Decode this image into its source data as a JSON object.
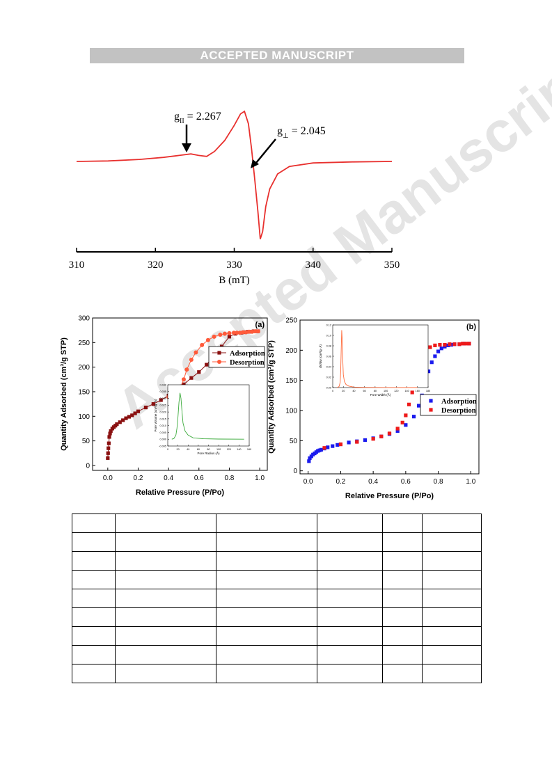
{
  "header": {
    "banner": "ACCEPTED MANUSCRIPT"
  },
  "watermark": "Accepted Manuscript",
  "chart_data": [
    {
      "type": "line",
      "xlabel": "B (mT)",
      "ylabel": "",
      "xlim": [
        310,
        350
      ],
      "x_ticks": [
        "310",
        "320",
        "330",
        "340",
        "350"
      ],
      "color": "#e8302e",
      "annotations": [
        {
          "main": "g",
          "sub": "II",
          "rest": " = 2.267",
          "x": 324.5
        },
        {
          "main": "g",
          "sub": "⊥",
          "rest": " = 2.045",
          "x": 332.3
        }
      ],
      "series": [
        {
          "x": [
            310,
            314,
            318,
            321,
            323,
            324.5,
            325.5,
            326.5,
            327.5,
            328.8,
            330,
            330.8,
            331.3,
            331.8,
            332.2,
            332.6,
            333,
            333.3,
            333.6,
            334,
            334.5,
            335.5,
            337,
            340,
            345,
            350
          ],
          "y": [
            0.0,
            0.01,
            0.04,
            0.08,
            0.12,
            0.15,
            0.12,
            0.1,
            0.2,
            0.42,
            0.72,
            0.95,
            1.0,
            0.75,
            0.25,
            -0.35,
            -1.0,
            -1.55,
            -1.4,
            -0.9,
            -0.55,
            -0.25,
            -0.1,
            -0.03,
            -0.01,
            0.0
          ]
        }
      ]
    },
    {
      "type": "line",
      "panel_label": "(a)",
      "xlabel": "Relative Pressure (P/Po)",
      "ylabel": "Quantity Adsorbed (cm³/g STP)",
      "xlim": [
        -0.1,
        1.05
      ],
      "ylim": [
        -10,
        300
      ],
      "x_ticks": [
        "0.0",
        "0.2",
        "0.4",
        "0.6",
        "0.8",
        "1.0"
      ],
      "y_ticks": [
        "0",
        "50",
        "100",
        "150",
        "200",
        "250",
        "300"
      ],
      "legend_position": "right",
      "series": [
        {
          "name": "Adsorption",
          "color": "#8a1010",
          "marker": "square",
          "x": [
            0.0,
            0.002,
            0.004,
            0.007,
            0.01,
            0.015,
            0.02,
            0.03,
            0.04,
            0.05,
            0.06,
            0.08,
            0.1,
            0.12,
            0.14,
            0.16,
            0.18,
            0.2,
            0.25,
            0.3,
            0.35,
            0.4,
            0.43,
            0.46,
            0.5,
            0.55,
            0.6,
            0.65,
            0.7,
            0.75,
            0.8,
            0.84,
            0.88,
            0.9,
            0.92,
            0.94,
            0.96,
            0.98,
            0.99
          ],
          "y": [
            15,
            25,
            35,
            45,
            58,
            65,
            70,
            75,
            78,
            81,
            84,
            88,
            92,
            96,
            99,
            102,
            106,
            110,
            118,
            125,
            133,
            142,
            148,
            155,
            165,
            178,
            190,
            205,
            222,
            242,
            262,
            268,
            270,
            271,
            272,
            272,
            273,
            273,
            273
          ]
        },
        {
          "name": "Desorption",
          "color": "#ff5a3a",
          "marker": "circle",
          "x": [
            0.99,
            0.97,
            0.95,
            0.93,
            0.91,
            0.89,
            0.87,
            0.85,
            0.83,
            0.8,
            0.77,
            0.74,
            0.7,
            0.66,
            0.62,
            0.58,
            0.55,
            0.52,
            0.5,
            0.48,
            0.45,
            0.42,
            0.4
          ],
          "y": [
            273,
            273,
            272,
            272,
            271,
            271,
            270,
            270,
            270,
            269,
            268,
            266,
            262,
            255,
            245,
            230,
            215,
            195,
            175,
            160,
            150,
            142,
            139
          ]
        }
      ],
      "inset": {
        "xlabel": "Pore Radius (Å)",
        "ylabel": "Pore Volume (cm³/g ·Å)",
        "xlim": [
          0,
          160
        ],
        "x_ticks": [
          "0",
          "20",
          "40",
          "60",
          "80",
          "100",
          "120",
          "140",
          "160"
        ],
        "y_ticks": [
          "-0.005",
          "0.000",
          "0.005",
          "0.010",
          "0.015",
          "0.020",
          "0.025",
          "0.030",
          "0.035",
          "0.040"
        ],
        "color": "#3aaa3a",
        "x": [
          8,
          12,
          16,
          18,
          20,
          22,
          24,
          26,
          28,
          30,
          34,
          40,
          50,
          70,
          100,
          150
        ],
        "y": [
          0.0,
          0.0005,
          0.003,
          0.008,
          0.016,
          0.027,
          0.034,
          0.03,
          0.02,
          0.012,
          0.006,
          0.003,
          0.001,
          0.0003,
          0.0001,
          0.0
        ]
      }
    },
    {
      "type": "line",
      "panel_label": "(b)",
      "xlabel": "Relative Pressure (P/Po)",
      "ylabel": "Quantity Adsorbed (cm³/g STP)",
      "xlim": [
        -0.05,
        1.05
      ],
      "ylim": [
        -5,
        250
      ],
      "x_ticks": [
        "0.0",
        "0.2",
        "0.4",
        "0.6",
        "0.8",
        "1.0"
      ],
      "y_ticks": [
        "0",
        "50",
        "100",
        "150",
        "200",
        "250"
      ],
      "legend_position": "right",
      "series": [
        {
          "name": "Adsorption",
          "color": "#1a1aee",
          "marker": "square",
          "x": [
            0.005,
            0.01,
            0.02,
            0.03,
            0.04,
            0.05,
            0.06,
            0.07,
            0.08,
            0.1,
            0.12,
            0.15,
            0.18,
            0.2,
            0.25,
            0.3,
            0.35,
            0.4,
            0.45,
            0.5,
            0.55,
            0.6,
            0.65,
            0.68,
            0.7,
            0.72,
            0.74,
            0.76,
            0.78,
            0.8,
            0.82,
            0.84,
            0.86,
            0.88,
            0.9,
            0.93,
            0.96,
            0.99
          ],
          "y": [
            16,
            21,
            24,
            27,
            29,
            31,
            33,
            34,
            35,
            37,
            39,
            41,
            43,
            44,
            47,
            49,
            51,
            54,
            57,
            61,
            66,
            76,
            90,
            108,
            125,
            148,
            165,
            180,
            190,
            198,
            203,
            206,
            208,
            209,
            210,
            210,
            211,
            211
          ]
        },
        {
          "name": "Desorption",
          "color": "#ee1a1a",
          "marker": "square",
          "x": [
            0.99,
            0.97,
            0.95,
            0.93,
            0.9,
            0.87,
            0.84,
            0.81,
            0.78,
            0.75,
            0.72,
            0.7,
            0.68,
            0.66,
            0.64,
            0.62,
            0.6,
            0.58,
            0.55,
            0.5,
            0.45,
            0.4,
            0.3,
            0.2,
            0.1
          ],
          "y": [
            211,
            211,
            211,
            210,
            210,
            210,
            209,
            209,
            208,
            205,
            200,
            188,
            175,
            160,
            130,
            110,
            92,
            80,
            70,
            62,
            57,
            53,
            48,
            44,
            38
          ]
        }
      ],
      "inset": {
        "xlabel": "Pore Width (Å)",
        "ylabel": "dV/dw (cm³/g ·Å)",
        "xlim": [
          0,
          180
        ],
        "x_ticks": [
          "0",
          "20",
          "40",
          "60",
          "80",
          "100",
          "120",
          "140",
          "160",
          "180"
        ],
        "y_ticks": [
          "0.00",
          "0.02",
          "0.04",
          "0.06",
          "0.08",
          "0.10",
          "0.12"
        ],
        "color": "#ff6a3a",
        "x": [
          8,
          12,
          14,
          15,
          16,
          17,
          18,
          19,
          20,
          22,
          25,
          30,
          40,
          60,
          100,
          160
        ],
        "y": [
          0.0,
          0.002,
          0.01,
          0.03,
          0.075,
          0.11,
          0.09,
          0.05,
          0.025,
          0.012,
          0.006,
          0.003,
          0.001,
          0.0004,
          0.0001,
          0.0
        ]
      }
    }
  ]
}
